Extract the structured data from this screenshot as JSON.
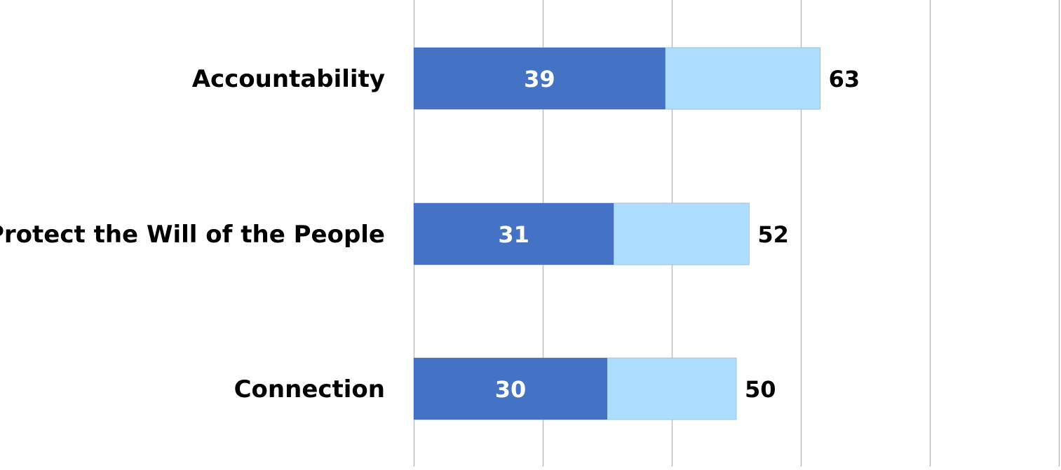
{
  "chart_data": {
    "type": "bar",
    "orientation": "horizontal",
    "stacked": true,
    "categories": [
      "Accountability",
      "Protect the Will of the People",
      "Connection"
    ],
    "series": [
      {
        "values": [
          39,
          31,
          30
        ],
        "color": "#4472C4"
      },
      {
        "values": [
          63,
          52,
          50
        ],
        "color": "#ADDEFF"
      }
    ],
    "data_labels": {
      "inner": [
        "39",
        "31",
        "30"
      ],
      "total": [
        "63",
        "52",
        "50"
      ]
    },
    "xlim": [
      0,
      100
    ],
    "grid": true,
    "gridline_color": "#BFBFBF"
  }
}
